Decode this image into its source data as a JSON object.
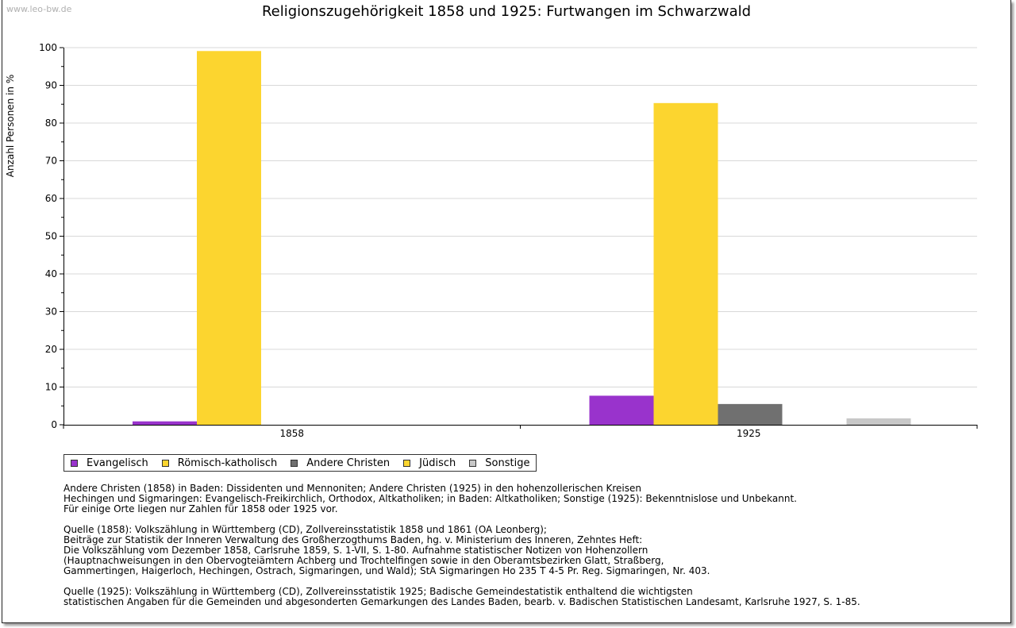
{
  "watermark": "www.leo-bw.de",
  "chart_data": {
    "type": "bar",
    "title": "Religionszugehörigkeit 1858 und 1925: Furtwangen im Schwarzwald",
    "xlabel": "",
    "ylabel": "Anzahl Personen in %",
    "ylim": [
      0,
      100
    ],
    "yticks": [
      0,
      10,
      20,
      30,
      40,
      50,
      60,
      70,
      80,
      90,
      100
    ],
    "categories": [
      "1858",
      "1925"
    ],
    "grid": true,
    "legend_position": "bottom-left",
    "series": [
      {
        "name": "Evangelisch",
        "color": "#9933cc",
        "values": [
          0.9,
          7.7
        ]
      },
      {
        "name": "Römisch-katholisch",
        "color": "#fcd52f",
        "values": [
          99.1,
          85.3
        ]
      },
      {
        "name": "Andere Christen",
        "color": "#707070",
        "values": [
          0,
          5.5
        ]
      },
      {
        "name": "Jüdisch",
        "color": "#fcd52f",
        "values": [
          0,
          0
        ]
      },
      {
        "name": "Sonstige",
        "color": "#c8c8c8",
        "values": [
          0,
          1.7
        ]
      }
    ]
  },
  "notes": [
    "Andere Christen (1858) in Baden: Dissidenten und Mennoniten; Andere Christen (1925) in den hohenzollerischen Kreisen\nHechingen und Sigmaringen: Evangelisch-Freikirchlich, Orthodox, Altkatholiken; in Baden: Altkatholiken; Sonstige (1925): Bekenntnislose und Unbekannt.\nFür einige Orte liegen nur Zahlen für 1858 oder 1925 vor.",
    "Quelle (1858): Volkszählung in Württemberg (CD), Zollvereinsstatistik 1858 und 1861 (OA Leonberg);\nBeiträge zur Statistik der Inneren Verwaltung des Großherzogthums Baden, hg. v. Ministerium des Inneren, Zehntes Heft:\nDie Volkszählung vom Dezember 1858, Carlsruhe 1859, S. 1-VII, S. 1-80. Aufnahme statistischer Notizen von Hohenzollern\n(Hauptnachweisungen in den Obervogteiämtern Achberg und Trochtelfingen sowie in den Oberamtsbezirken Glatt, Straßberg,\nGammertingen, Haigerloch, Hechingen, Ostrach, Sigmaringen, und Wald); StA Sigmaringen Ho 235 T 4-5 Pr. Reg. Sigmaringen, Nr. 403.",
    "Quelle (1925): Volkszählung in Württemberg (CD), Zollvereinsstatistik 1925; Badische Gemeindestatistik enthaltend die wichtigsten\nstatistischen Angaben für die Gemeinden und abgesonderten Gemarkungen des Landes Baden, bearb. v. Badischen Statistischen Landesamt, Karlsruhe 1927, S. 1-85."
  ]
}
